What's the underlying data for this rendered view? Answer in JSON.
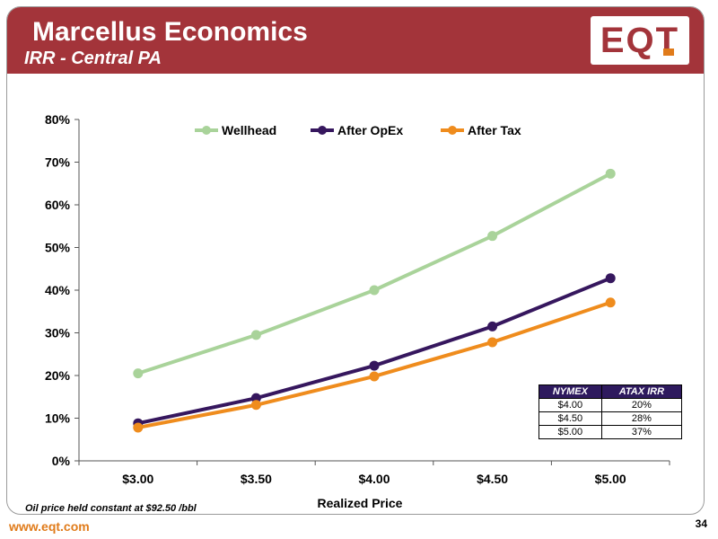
{
  "header": {
    "title": "Marcellus Economics",
    "subtitle": "IRR - Central PA",
    "logo_text": "EQT"
  },
  "colors": {
    "banner": "#a3343a",
    "accent": "#e07b1a",
    "wellhead": "#a9d39a",
    "after_opex": "#36175e",
    "after_tax": "#ef8c1d"
  },
  "chart_data": {
    "type": "line",
    "xlabel": "Realized Price",
    "ylabel": "",
    "categories": [
      "$3.00",
      "$3.50",
      "$4.00",
      "$4.50",
      "$5.00"
    ],
    "ylim": [
      0,
      80
    ],
    "yticks": [
      "0%",
      "10%",
      "20%",
      "30%",
      "40%",
      "50%",
      "60%",
      "70%",
      "80%"
    ],
    "grid": false,
    "legend_position": "top",
    "series": [
      {
        "name": "Wellhead",
        "values": [
          20.5,
          29.5,
          40.0,
          52.7,
          67.3
        ]
      },
      {
        "name": "After OpEx",
        "values": [
          8.8,
          14.7,
          22.3,
          31.5,
          42.8
        ]
      },
      {
        "name": "After Tax",
        "values": [
          7.8,
          13.1,
          19.8,
          27.8,
          37.1
        ]
      }
    ]
  },
  "table": {
    "headers": [
      "NYMEX",
      "ATAX IRR"
    ],
    "rows": [
      [
        "$4.00",
        "20%"
      ],
      [
        "$4.50",
        "28%"
      ],
      [
        "$5.00",
        "37%"
      ]
    ]
  },
  "footer": {
    "note": "Oil price held constant at $92.50 /bbl",
    "website": "www.eqt.com",
    "page_number": "34"
  }
}
